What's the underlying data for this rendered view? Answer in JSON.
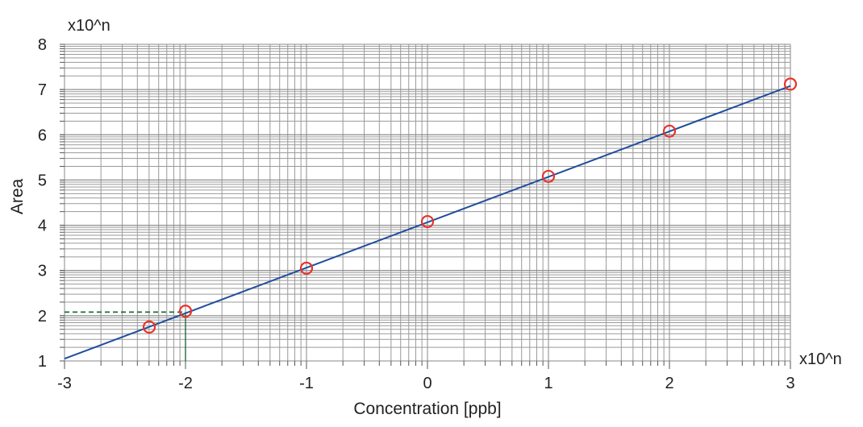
{
  "chart_data": {
    "type": "scatter",
    "xlabel": "Concentration [ppb]",
    "ylabel": "Area",
    "x_scale_label": "x10^n",
    "y_scale_label": "x10^n",
    "xlim": [
      -3,
      3
    ],
    "ylim": [
      1,
      8
    ],
    "x_log_scale": true,
    "y_log_scale": true,
    "grid": true,
    "x_ticks": [
      "-3",
      "-2",
      "-1",
      "0",
      "1",
      "2",
      "3"
    ],
    "y_ticks": [
      "1",
      "2",
      "3",
      "4",
      "5",
      "6",
      "7",
      "8"
    ],
    "points": [
      {
        "x": -2.3,
        "y": 1.75
      },
      {
        "x": -2.0,
        "y": 2.1
      },
      {
        "x": -1.0,
        "y": 3.05
      },
      {
        "x": 0.0,
        "y": 4.08
      },
      {
        "x": 1.0,
        "y": 5.08
      },
      {
        "x": 2.0,
        "y": 6.08
      },
      {
        "x": 3.0,
        "y": 7.12
      }
    ],
    "fit_line": {
      "x": [
        -3,
        3
      ],
      "y": [
        1.05,
        7.08
      ]
    },
    "reference": {
      "x": -2.0,
      "y": 2.08
    },
    "colors": {
      "marker": "#e8332a",
      "fit_line": "#1f4e9c",
      "reference_line": "#1e6b3a",
      "grid_minor": "#9a9a9a",
      "grid_major": "#8a8a8a"
    }
  }
}
